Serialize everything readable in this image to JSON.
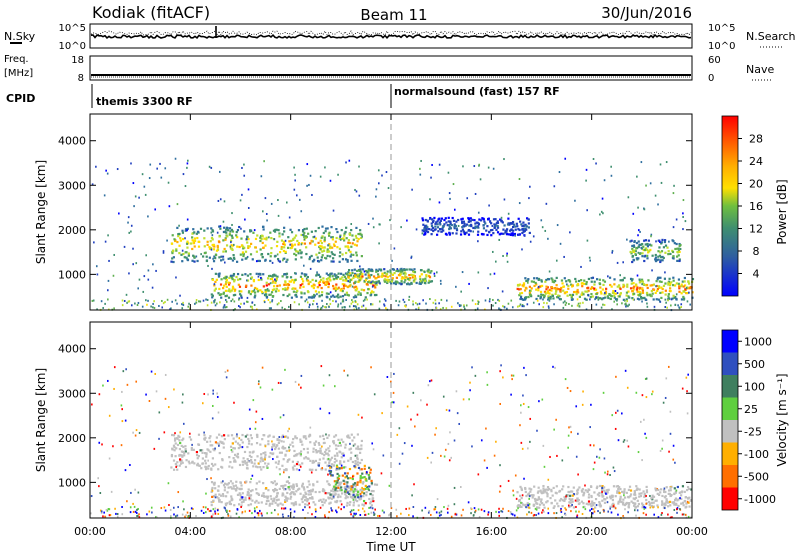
{
  "header": {
    "station": "Kodiak (fitACF)",
    "beam": "Beam 11",
    "date": "30/Jun/2016"
  },
  "strip_panels": {
    "nsky": {
      "label": "N.Sky",
      "ticks": [
        "10^5",
        "10^0"
      ]
    },
    "nsearch": {
      "label": "N.Search",
      "ticks": [
        "10^5",
        "10^0"
      ]
    },
    "freq": {
      "label_line1": "Freq.",
      "label_line2": "[MHz]",
      "ticks": [
        "18",
        "8"
      ]
    },
    "nave": {
      "label": "Nave",
      "ticks": [
        "60",
        "0"
      ]
    },
    "cpid": {
      "label": "CPID",
      "modes": [
        {
          "name": "themis 3300 RF",
          "start_hour": 0
        },
        {
          "name": "normalsound (fast) 157 RF",
          "start_hour": 12
        }
      ]
    }
  },
  "chart_data": [
    {
      "type": "heatmap",
      "name": "power",
      "ylabel": "Slant Range [km]",
      "ylim": [
        200,
        4600
      ],
      "yticks": [
        1000,
        2000,
        3000,
        4000
      ],
      "xlim": [
        0,
        24
      ],
      "colorbar": {
        "label": "Power [dB]",
        "range": [
          0,
          32
        ],
        "ticks": [
          "28",
          "24",
          "20",
          "16",
          "12",
          "8",
          "4"
        ],
        "colors": [
          "#0000ff",
          "#1f3fbf",
          "#2f6f9f",
          "#3f8f6f",
          "#5faf4f",
          "#bfdf2f",
          "#ffdf00",
          "#ffaf00",
          "#ff7f00",
          "#ff3f00",
          "#ff0000"
        ]
      },
      "echo_bands": [
        {
          "start_hour": 3.2,
          "end_hour": 10.8,
          "range_low_km": 1300,
          "range_high_km": 2100,
          "peak_db": 26
        },
        {
          "start_hour": 4.8,
          "end_hour": 11.4,
          "range_low_km": 500,
          "range_high_km": 1050,
          "peak_db": 30
        },
        {
          "start_hour": 10.2,
          "end_hour": 13.6,
          "range_low_km": 800,
          "range_high_km": 1150,
          "peak_db": 28
        },
        {
          "start_hour": 17.0,
          "end_hour": 24.0,
          "range_low_km": 450,
          "range_high_km": 950,
          "peak_db": 30
        },
        {
          "start_hour": 13.2,
          "end_hour": 17.5,
          "range_low_km": 1900,
          "range_high_km": 2300,
          "peak_db": 8
        },
        {
          "start_hour": 21.5,
          "end_hour": 23.5,
          "range_low_km": 1300,
          "range_high_km": 1800,
          "peak_db": 20
        }
      ]
    },
    {
      "type": "heatmap",
      "name": "velocity",
      "ylabel": "Slant Range [km]",
      "ylim": [
        200,
        4600
      ],
      "yticks": [
        1000,
        2000,
        3000,
        4000
      ],
      "xlim": [
        0,
        24
      ],
      "xlabel": "Time UT",
      "xticks": [
        "00:00",
        "04:00",
        "08:00",
        "12:00",
        "16:00",
        "20:00",
        "00:00"
      ],
      "colorbar": {
        "label": "Velocity [m s⁻¹]",
        "ticks": [
          "1000",
          "500",
          "100",
          "25",
          "-25",
          "-100",
          "-500",
          "-1000"
        ],
        "colors": [
          "#0000ff",
          "#2f4fbf",
          "#3f7f5f",
          "#5fcf3f",
          "#c0c0c0",
          "#ffaf00",
          "#ff6f00",
          "#ff0000"
        ]
      },
      "echo_bands": [
        {
          "start_hour": 3.2,
          "end_hour": 10.8,
          "range_low_km": 1300,
          "range_high_km": 2100,
          "velocity": "ground scatter"
        },
        {
          "start_hour": 4.8,
          "end_hour": 11.4,
          "range_low_km": 500,
          "range_high_km": 1050,
          "velocity": "ground scatter"
        },
        {
          "start_hour": 9.5,
          "end_hour": 11.2,
          "range_low_km": 700,
          "range_high_km": 1400,
          "velocity": "mixed -500 to 500"
        },
        {
          "start_hour": 17.0,
          "end_hour": 24.0,
          "range_low_km": 450,
          "range_high_km": 950,
          "velocity": "ground scatter"
        }
      ]
    }
  ]
}
